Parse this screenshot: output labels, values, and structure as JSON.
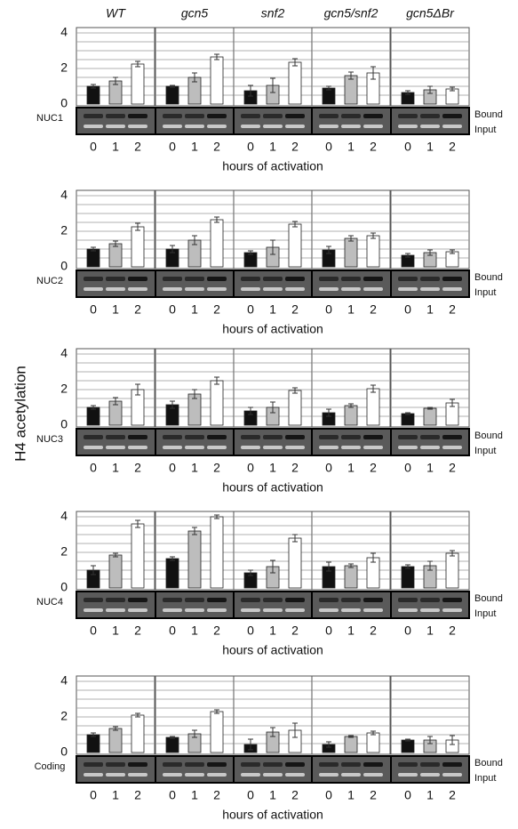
{
  "y_label": "H4 acetylation",
  "columns": [
    "WT",
    "gcn5",
    "snf2",
    "gcn5/snf2",
    "gcn5ΔBr"
  ],
  "chart_data": [
    {
      "type": "bar",
      "label": "NUC1",
      "x_label": "hours of activation",
      "gel_labels": [
        "Bound",
        "Input"
      ],
      "categories": [
        "0",
        "1",
        "2"
      ],
      "colors": [
        "#111111",
        "#bdbdbd",
        "#ffffff"
      ],
      "ylim": [
        0,
        4
      ],
      "yticks": [
        0,
        2,
        4
      ],
      "grid": true,
      "grid_yticks": [
        0.5,
        1,
        1.5,
        2,
        2.5,
        3,
        3.5,
        4
      ],
      "panels": [
        {
          "values": [
            1.0,
            1.3,
            2.25
          ],
          "errors": [
            0.1,
            0.2,
            0.15
          ]
        },
        {
          "values": [
            1.0,
            1.5,
            2.65
          ],
          "errors": [
            0.05,
            0.25,
            0.15
          ]
        },
        {
          "values": [
            0.75,
            1.05,
            2.35
          ],
          "errors": [
            0.3,
            0.4,
            0.2
          ]
        },
        {
          "values": [
            0.9,
            1.6,
            1.75
          ],
          "errors": [
            0.1,
            0.2,
            0.35
          ]
        },
        {
          "values": [
            0.65,
            0.8,
            0.85
          ],
          "errors": [
            0.1,
            0.2,
            0.1
          ]
        }
      ]
    },
    {
      "type": "bar",
      "label": "NUC2",
      "x_label": "hours of activation",
      "gel_labels": [
        "Bound",
        "Input"
      ],
      "categories": [
        "0",
        "1",
        "2"
      ],
      "colors": [
        "#111111",
        "#bdbdbd",
        "#ffffff"
      ],
      "ylim": [
        0,
        4
      ],
      "yticks": [
        0,
        2,
        4
      ],
      "grid": true,
      "grid_yticks": [
        0.5,
        1,
        1.5,
        2,
        2.5,
        3,
        3.5,
        4
      ],
      "panels": [
        {
          "values": [
            1.0,
            1.3,
            2.25
          ],
          "errors": [
            0.1,
            0.15,
            0.2
          ]
        },
        {
          "values": [
            1.0,
            1.5,
            2.65
          ],
          "errors": [
            0.2,
            0.25,
            0.15
          ]
        },
        {
          "values": [
            0.8,
            1.1,
            2.4
          ],
          "errors": [
            0.1,
            0.4,
            0.15
          ]
        },
        {
          "values": [
            0.95,
            1.6,
            1.75
          ],
          "errors": [
            0.2,
            0.15,
            0.15
          ]
        },
        {
          "values": [
            0.65,
            0.8,
            0.85
          ],
          "errors": [
            0.1,
            0.15,
            0.1
          ]
        }
      ]
    },
    {
      "type": "bar",
      "label": "NUC3",
      "x_label": "hours of activation",
      "gel_labels": [
        "Bound",
        "Input"
      ],
      "categories": [
        "0",
        "1",
        "2"
      ],
      "colors": [
        "#111111",
        "#bdbdbd",
        "#ffffff"
      ],
      "ylim": [
        0,
        4
      ],
      "yticks": [
        0,
        2,
        4
      ],
      "grid": true,
      "grid_yticks": [
        0.5,
        1,
        1.5,
        2,
        2.5,
        3,
        3.5,
        4
      ],
      "panels": [
        {
          "values": [
            1.0,
            1.35,
            2.0
          ],
          "errors": [
            0.1,
            0.2,
            0.3
          ]
        },
        {
          "values": [
            1.15,
            1.75,
            2.5
          ],
          "errors": [
            0.2,
            0.25,
            0.2
          ]
        },
        {
          "values": [
            0.8,
            1.0,
            1.95
          ],
          "errors": [
            0.2,
            0.3,
            0.15
          ]
        },
        {
          "values": [
            0.7,
            1.1,
            2.05
          ],
          "errors": [
            0.2,
            0.1,
            0.2
          ]
        },
        {
          "values": [
            0.65,
            0.95,
            1.25
          ],
          "errors": [
            0.05,
            0.05,
            0.2
          ]
        }
      ]
    },
    {
      "type": "bar",
      "label": "NUC4",
      "x_label": "hours of activation",
      "gel_labels": [
        "Bound",
        "Input"
      ],
      "categories": [
        "0",
        "1",
        "2"
      ],
      "colors": [
        "#111111",
        "#bdbdbd",
        "#ffffff"
      ],
      "ylim": [
        0,
        4
      ],
      "yticks": [
        0,
        2,
        4
      ],
      "grid": true,
      "grid_yticks": [
        0.5,
        1,
        1.5,
        2,
        2.5,
        3,
        3.5,
        4
      ],
      "panels": [
        {
          "values": [
            1.0,
            1.85,
            3.6
          ],
          "errors": [
            0.25,
            0.1,
            0.2
          ]
        },
        {
          "values": [
            1.65,
            3.2,
            4.0
          ],
          "errors": [
            0.1,
            0.2,
            0.1
          ]
        },
        {
          "values": [
            0.85,
            1.2,
            2.8
          ],
          "errors": [
            0.15,
            0.35,
            0.2
          ]
        },
        {
          "values": [
            1.2,
            1.25,
            1.7
          ],
          "errors": [
            0.25,
            0.1,
            0.25
          ]
        },
        {
          "values": [
            1.2,
            1.25,
            1.95
          ],
          "errors": [
            0.1,
            0.25,
            0.15
          ]
        }
      ]
    },
    {
      "type": "bar",
      "label": "Coding",
      "x_label": "hours of activation",
      "gel_labels": [
        "Bound",
        "Input"
      ],
      "categories": [
        "0",
        "1",
        "2"
      ],
      "colors": [
        "#111111",
        "#bdbdbd",
        "#ffffff"
      ],
      "ylim": [
        0,
        4
      ],
      "yticks": [
        0,
        2,
        4
      ],
      "grid": true,
      "grid_yticks": [
        0.5,
        1,
        1.5,
        2,
        2.5,
        3,
        3.5,
        4
      ],
      "panels": [
        {
          "values": [
            1.0,
            1.35,
            2.1
          ],
          "errors": [
            0.1,
            0.1,
            0.1
          ]
        },
        {
          "values": [
            0.85,
            1.05,
            2.3
          ],
          "errors": [
            0.05,
            0.2,
            0.1
          ]
        },
        {
          "values": [
            0.45,
            1.15,
            1.25
          ],
          "errors": [
            0.3,
            0.25,
            0.4
          ]
        },
        {
          "values": [
            0.45,
            0.9,
            1.1
          ],
          "errors": [
            0.15,
            0.05,
            0.1
          ]
        },
        {
          "values": [
            0.7,
            0.7,
            0.7
          ],
          "errors": [
            0.05,
            0.2,
            0.25
          ]
        }
      ]
    }
  ]
}
